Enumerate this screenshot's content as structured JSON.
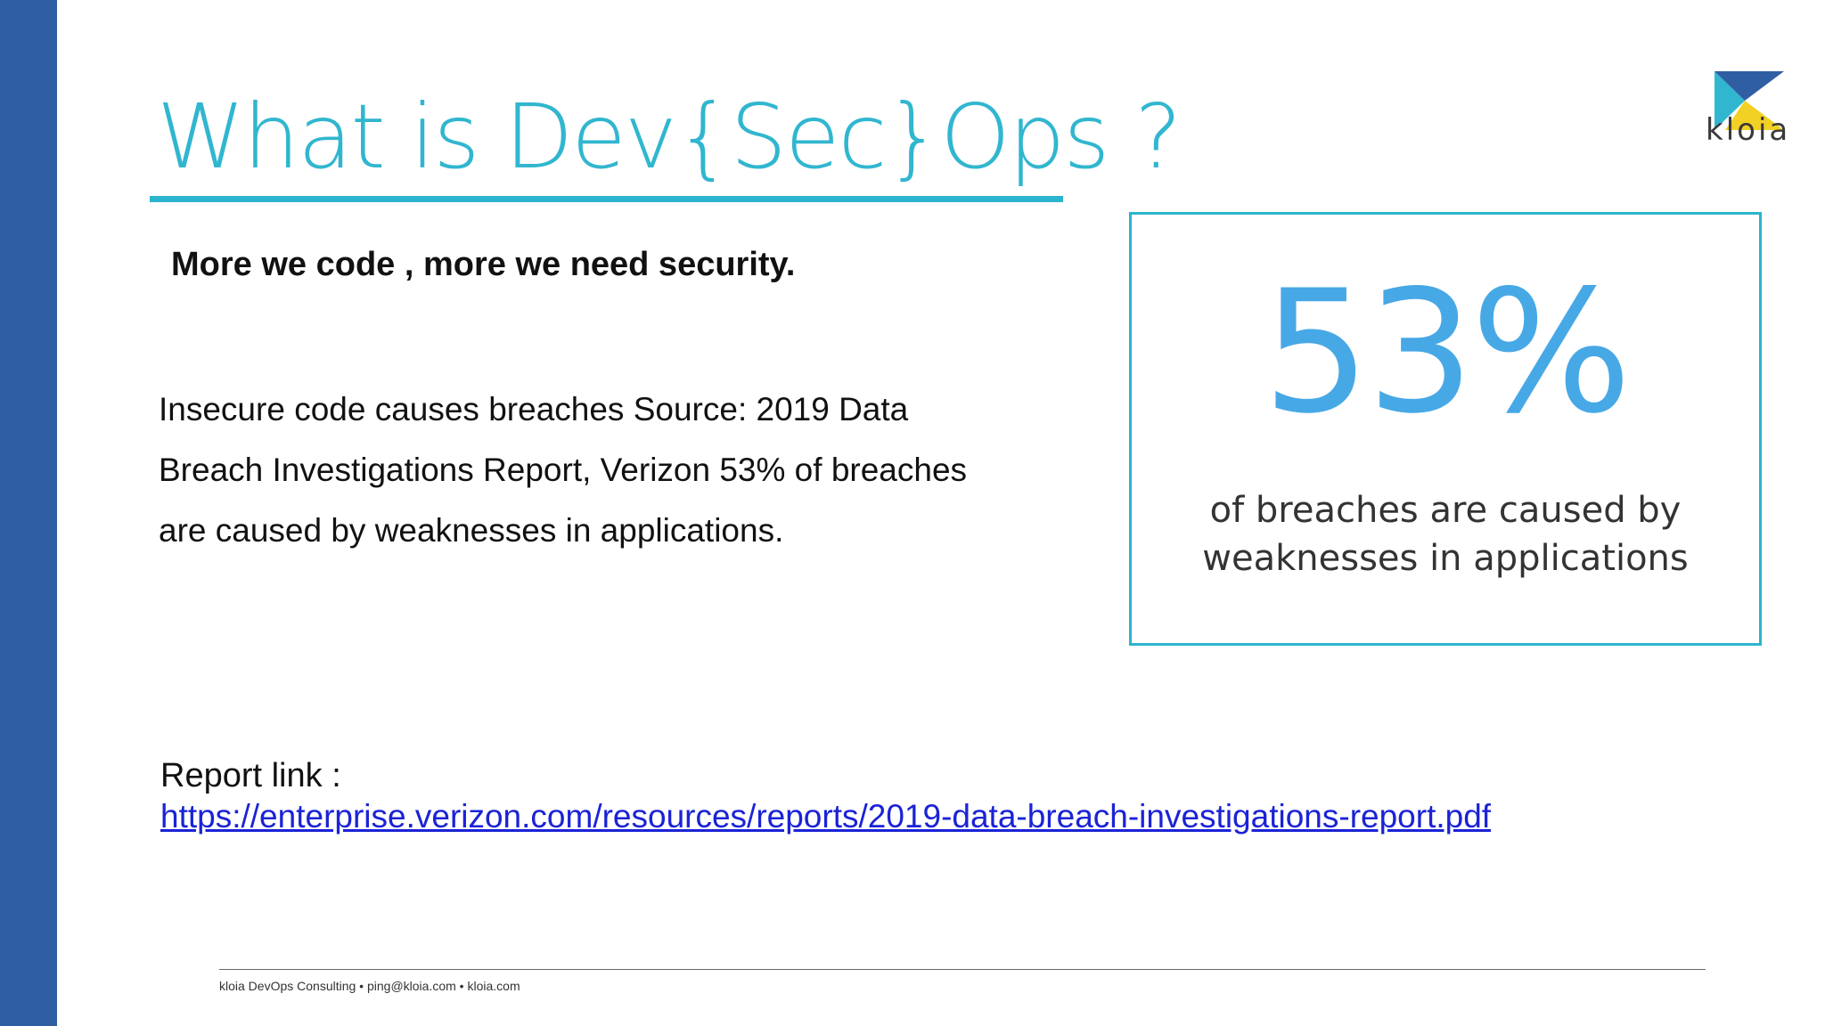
{
  "slide": {
    "title": "What is Dev{Sec}Ops ?",
    "subtitle": "More we code , more we need security.",
    "body": "Insecure code causes breaches Source: 2019 Data Breach Investigations Report, Verizon 53% of breaches are caused by weaknesses in applications.",
    "stat": {
      "value": "53%",
      "caption_line1": "of breaches are caused by",
      "caption_line2": "weaknesses in applications"
    },
    "report": {
      "label": "Report link :",
      "url": "https://enterprise.verizon.com/resources/reports/2019-data-breach-investigations-report.pdf"
    },
    "footer": "kloia DevOps Consulting • ping@kloia.com • kloia.com"
  },
  "logo": {
    "text": "kloia",
    "colors": {
      "blue": "#2f5ea3",
      "cyan": "#31b6cf",
      "yellow": "#f2d024"
    }
  },
  "colors": {
    "accent": "#2cb4ce",
    "left_bar": "#2f5ea3",
    "stat": "#47a8e6",
    "link": "#1a23d6"
  }
}
